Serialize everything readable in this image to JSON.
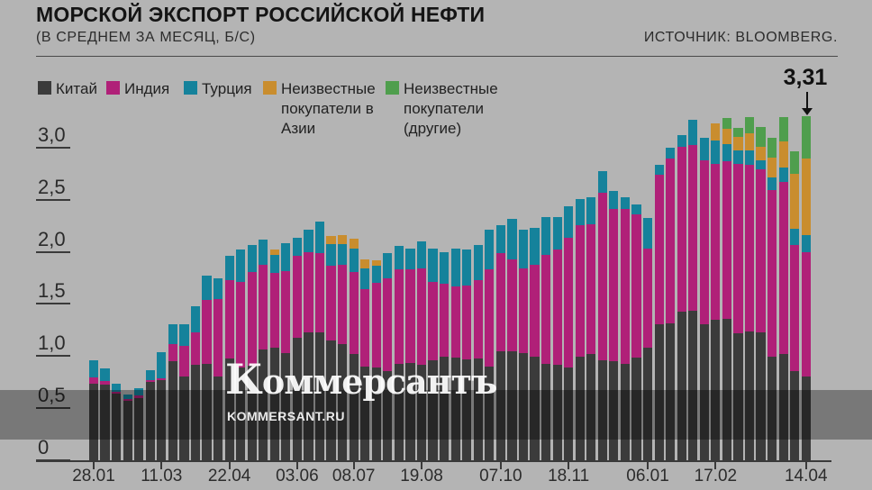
{
  "header": {
    "title": "МОРСКОЙ ЭКСПОРТ РОССИЙСКОЙ НЕФТИ",
    "subtitle": "(В СРЕДНЕМ ЗА МЕСЯЦ, Б/С)",
    "source": "ИСТОЧНИК: BLOOMBERG."
  },
  "watermark": {
    "logo": "Коммерсантъ",
    "site": "KOMMERSANT.RU"
  },
  "annotation": {
    "label": "3,31"
  },
  "legend": {
    "items": [
      {
        "label": "Китай",
        "color": "#3b3b3b"
      },
      {
        "label": "Индия",
        "color": "#b02078"
      },
      {
        "label": "Турция",
        "color": "#15829b"
      },
      {
        "label": "Неизвестные покупатели в Азии",
        "color": "#c98d2e"
      },
      {
        "label": "Неизвестные покупатели (другие)",
        "color": "#4f9e4d"
      }
    ]
  },
  "chart_data": {
    "type": "bar",
    "stacked": true,
    "title": "МОРСКОЙ ЭКСПОРТ РОССИЙСКОЙ НЕФТИ (В СРЕДНЕМ ЗА МЕСЯЦ, Б/С)",
    "ylim": [
      0,
      3.5
    ],
    "grid": false,
    "legend_position": "top",
    "y_ticks": [
      {
        "value": 3.0,
        "label": "3,0"
      },
      {
        "value": 2.5,
        "label": "2,5"
      },
      {
        "value": 2.0,
        "label": "2,0"
      },
      {
        "value": 1.5,
        "label": "1,5"
      },
      {
        "value": 1.0,
        "label": "1,0"
      },
      {
        "value": 0.5,
        "label": "0,5"
      },
      {
        "value": 0.0,
        "label": "0"
      }
    ],
    "x_ticks": [
      {
        "index": 0,
        "label": "28.01"
      },
      {
        "index": 6,
        "label": "11.03"
      },
      {
        "index": 12,
        "label": "22.04"
      },
      {
        "index": 18,
        "label": "03.06"
      },
      {
        "index": 23,
        "label": "08.07"
      },
      {
        "index": 29,
        "label": "19.08"
      },
      {
        "index": 36,
        "label": "07.10"
      },
      {
        "index": 42,
        "label": "18.11"
      },
      {
        "index": 49,
        "label": "06.01"
      },
      {
        "index": 55,
        "label": "17.02"
      },
      {
        "index": 63,
        "label": "14.04"
      }
    ],
    "annotation": {
      "bar_index": 63,
      "value_label": "3,31",
      "value": 3.31
    },
    "series": [
      {
        "name": "Китай",
        "color": "#3b3b3b",
        "values": [
          0.74,
          0.73,
          0.64,
          0.57,
          0.6,
          0.75,
          0.77,
          0.95,
          0.81,
          0.92,
          0.93,
          0.81,
          0.98,
          0.89,
          0.91,
          1.07,
          1.08,
          1.03,
          1.18,
          1.23,
          1.23,
          1.15,
          1.12,
          1.02,
          0.9,
          0.89,
          0.86,
          0.93,
          0.94,
          0.92,
          0.96,
          1.0,
          0.99,
          0.97,
          0.98,
          0.9,
          1.05,
          1.05,
          1.03,
          1.0,
          0.93,
          0.92,
          0.89,
          1.0,
          1.02,
          0.96,
          0.95,
          0.93,
          0.99,
          1.08,
          1.31,
          1.32,
          1.43,
          1.44,
          1.31,
          1.35,
          1.36,
          1.22,
          1.24,
          1.23,
          1.0,
          1.02,
          0.86,
          0.81
        ]
      },
      {
        "name": "Индия",
        "color": "#b02078",
        "values": [
          0.06,
          0.03,
          0.02,
          0.02,
          0.02,
          0.02,
          0.02,
          0.17,
          0.29,
          0.31,
          0.61,
          0.74,
          0.75,
          0.83,
          0.9,
          0.81,
          0.72,
          0.79,
          0.79,
          0.77,
          0.76,
          0.72,
          0.76,
          0.79,
          0.75,
          0.82,
          0.89,
          0.91,
          0.9,
          0.93,
          0.76,
          0.7,
          0.68,
          0.71,
          0.75,
          0.94,
          0.94,
          0.88,
          0.82,
          0.88,
          1.05,
          1.11,
          1.25,
          1.26,
          1.25,
          1.61,
          1.47,
          1.49,
          1.38,
          0.96,
          1.44,
          1.58,
          1.59,
          1.59,
          1.58,
          1.5,
          1.52,
          1.63,
          1.6,
          1.57,
          1.6,
          1.66,
          1.21,
          1.19
        ]
      },
      {
        "name": "Турция",
        "color": "#15829b",
        "values": [
          0.16,
          0.12,
          0.08,
          0.04,
          0.07,
          0.1,
          0.25,
          0.19,
          0.21,
          0.25,
          0.24,
          0.2,
          0.24,
          0.31,
          0.26,
          0.24,
          0.18,
          0.27,
          0.17,
          0.22,
          0.31,
          0.21,
          0.2,
          0.23,
          0.2,
          0.16,
          0.24,
          0.22,
          0.2,
          0.26,
          0.32,
          0.3,
          0.37,
          0.35,
          0.34,
          0.38,
          0.27,
          0.39,
          0.37,
          0.36,
          0.36,
          0.31,
          0.3,
          0.25,
          0.26,
          0.21,
          0.17,
          0.11,
          0.09,
          0.29,
          0.09,
          0.11,
          0.11,
          0.25,
          0.21,
          0.23,
          0.16,
          0.13,
          0.14,
          0.09,
          0.12,
          0.14,
          0.16,
          0.17
        ]
      },
      {
        "name": "Неизвестные покупатели в Азии",
        "color": "#c98d2e",
        "values": [
          0,
          0,
          0,
          0,
          0,
          0,
          0,
          0,
          0,
          0,
          0,
          0,
          0,
          0,
          0,
          0,
          0.05,
          0,
          0,
          0,
          0,
          0.08,
          0.09,
          0.09,
          0.08,
          0.05,
          0,
          0,
          0,
          0,
          0,
          0,
          0,
          0,
          0,
          0,
          0,
          0,
          0,
          0,
          0,
          0,
          0,
          0,
          0,
          0,
          0,
          0,
          0,
          0,
          0,
          0,
          0,
          0,
          0,
          0.16,
          0.15,
          0.13,
          0.17,
          0.13,
          0.19,
          0.25,
          0.53,
          0.73
        ]
      },
      {
        "name": "Неизвестные покупатели (другие)",
        "color": "#4f9e4d",
        "values": [
          0,
          0,
          0,
          0,
          0,
          0,
          0,
          0,
          0,
          0,
          0,
          0,
          0,
          0,
          0,
          0,
          0,
          0,
          0,
          0,
          0,
          0,
          0,
          0,
          0,
          0,
          0,
          0,
          0,
          0,
          0,
          0,
          0,
          0,
          0,
          0,
          0,
          0,
          0,
          0,
          0,
          0,
          0,
          0,
          0,
          0,
          0,
          0,
          0,
          0,
          0,
          0,
          0,
          0,
          0,
          0,
          0.1,
          0.09,
          0.15,
          0.19,
          0.19,
          0.23,
          0.21,
          0.41
        ]
      }
    ]
  }
}
